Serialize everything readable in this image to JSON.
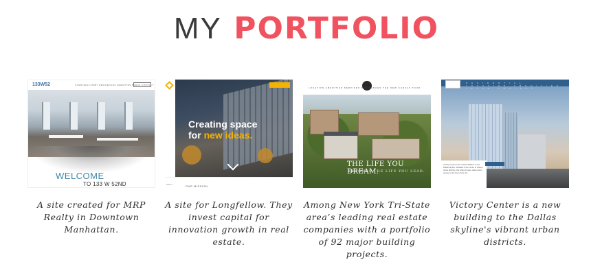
{
  "heading": {
    "light": "MY",
    "accent": "PORTFOLIO"
  },
  "portfolio": {
    "items": [
      {
        "caption": "A site created for MRP Realty in Downtown Manhattan.",
        "screenshot": {
          "logo": "133W52",
          "nav": "OVERVIEW  LOBBY  RESIDENCES  AMENITIES  PRESS  CONTACT",
          "welcome": "WELCOME",
          "address": "TO 133 W 52ND"
        }
      },
      {
        "caption": "A site for Longfellow. They invest capital for innovation growth in real estate.",
        "screenshot": {
          "tagline_line1": "Creating space",
          "tagline_prefix": "for ",
          "tagline_highlight": "new ideas.",
          "badge": "INVESTORS",
          "menu": "MENU",
          "sub": "OUR MISSION"
        }
      },
      {
        "caption": "Among New York Tri-State area’s leading real estate companies with a portfolio of 92 major building projects.",
        "screenshot": {
          "nav": "LOCATION  AMENITIES  SERVICES  RESIDENCES  THE NEW CANVAS  TOUR",
          "band_title": "THE LIFE YOU DREAM.",
          "band_sub": "BECOMES THE LIFE YOU LEAD."
        }
      },
      {
        "caption": "Victory Center is a new building to the Dallas skyline's vibrant urban districts.",
        "screenshot": {
          "nav": "RESIDENTIAL  LOCATION  AMENITIES  LEASE  CONTACT",
          "blurb": "Victory Center is the newest addition to the Dallas skyline. Situated in the center of vibrant urban districts, this Class A tower offers direct access to the best of the city."
        }
      }
    ]
  },
  "colors": {
    "accent": "#f0525f",
    "heading_light": "#3a3a3a",
    "caption_text": "#2e2e2e"
  }
}
